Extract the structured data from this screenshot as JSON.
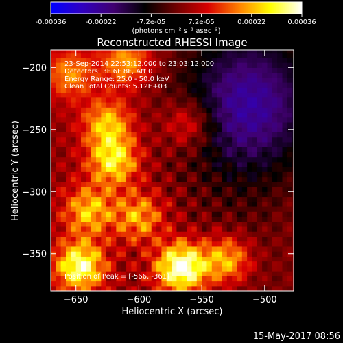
{
  "chart_data": {
    "type": "heatmap",
    "title": "Reconstructed RHESSI Image",
    "xlabel": "Heliocentric X (arcsec)",
    "ylabel": "Heliocentric Y (arcsec)",
    "xlim": [
      -670,
      -477
    ],
    "ylim": [
      -380,
      -186
    ],
    "xticks": [
      -650,
      -600,
      -550,
      -500
    ],
    "yticks": [
      -350,
      -300,
      -250,
      -200
    ],
    "colorbar": {
      "ticks": [
        "-0.00036",
        "-0.00022",
        "-7.2e-05",
        "7.2e-05",
        "0.00022",
        "0.00036"
      ],
      "range": [
        -0.00036,
        0.00036
      ],
      "unit_label": "(photons cm⁻² s⁻¹ asec⁻²)",
      "colormap": [
        "#0000ff",
        "#3000c0",
        "#400070",
        "#000000",
        "#700000",
        "#d80000",
        "#ff8000",
        "#ffff00",
        "#ffffff"
      ]
    },
    "annotations": [
      "23-Sep-2014 22:53:12.000 to 23:03:12.000",
      "Detectors: 3F 6F 8F, Att 0",
      "Energy Range: 25.0 - 50.0 keV",
      "Clean    Total Counts: 5.12E+03"
    ],
    "peak_label": "Position of Peak = [-566, -361]",
    "peak": [
      -566,
      -361
    ],
    "bright_sources": [
      {
        "x": -566,
        "y": -361,
        "intensity": 0.00036
      },
      {
        "x": -647,
        "y": -360,
        "intensity": 0.0003
      },
      {
        "x": -620,
        "y": -275,
        "intensity": 0.00024
      },
      {
        "x": -625,
        "y": -245,
        "intensity": 0.0002
      },
      {
        "x": -640,
        "y": -315,
        "intensity": 0.0002
      },
      {
        "x": -600,
        "y": -320,
        "intensity": 0.00018
      },
      {
        "x": -560,
        "y": -245,
        "intensity": 0.00015
      },
      {
        "x": -530,
        "y": -355,
        "intensity": 0.00022
      },
      {
        "x": -610,
        "y": -195,
        "intensity": 0.00018
      },
      {
        "x": -655,
        "y": -205,
        "intensity": 0.00016
      }
    ],
    "negative_region": {
      "x": -510,
      "y": -230,
      "intensity": -0.00022
    }
  },
  "footer": {
    "timestamp": "15-May-2017 08:56"
  }
}
